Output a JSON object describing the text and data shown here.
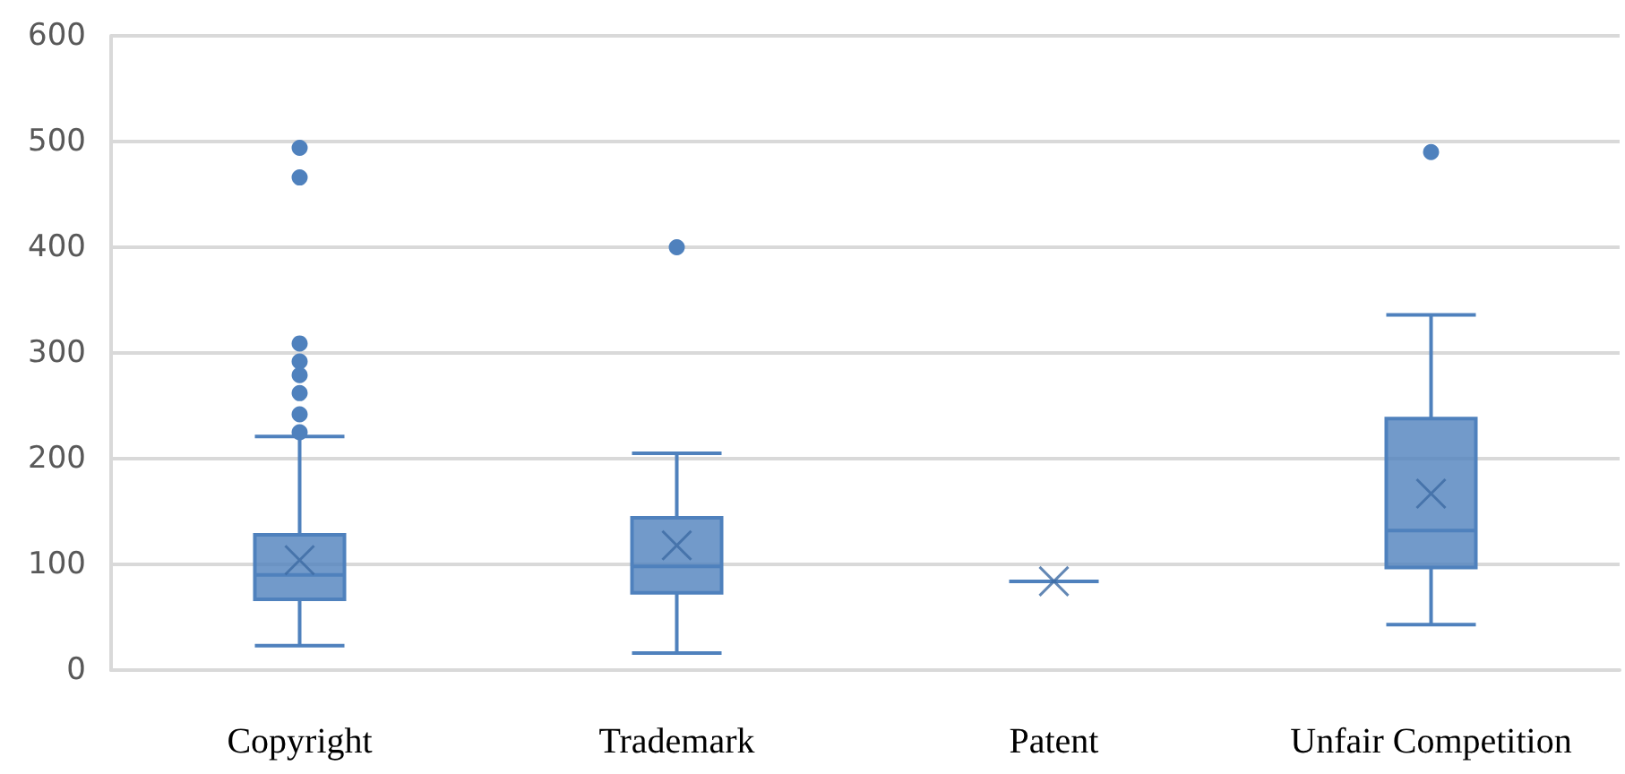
{
  "chart_data": {
    "type": "box",
    "categories": [
      "Copyright",
      "Trademark",
      "Patent",
      "Unfair Competition"
    ],
    "boxes": [
      {
        "low": 23,
        "q1": 67,
        "median": 90,
        "q3": 128,
        "high": 221,
        "mean": 104,
        "outliers": [
          494,
          466,
          309,
          292,
          279,
          262,
          242,
          225
        ]
      },
      {
        "low": 16,
        "q1": 73,
        "median": 98,
        "q3": 144,
        "high": 205,
        "mean": 118,
        "outliers": [
          400
        ]
      },
      {
        "low": 84,
        "q1": 84,
        "median": 84,
        "q3": 84,
        "high": 84,
        "mean": 84
      },
      {
        "low": 43,
        "q1": 97,
        "median": 132,
        "q3": 238,
        "high": 336,
        "mean": 167,
        "outliers": [
          490
        ]
      }
    ],
    "color": "#4f81bd",
    "ylim": [
      0,
      600
    ],
    "yticks": [
      0,
      100,
      200,
      300,
      400,
      500,
      600
    ],
    "grid": "y",
    "marker": "circle"
  }
}
